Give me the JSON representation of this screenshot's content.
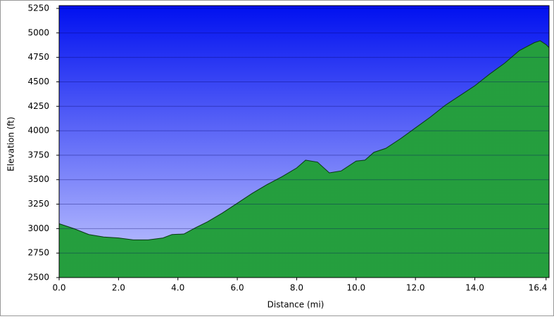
{
  "chart_data": {
    "type": "area",
    "x_label": "Distance    (mi)",
    "y_label": "Elevation (ft)",
    "x": [
      0,
      0.5,
      1,
      1.5,
      2,
      2.5,
      3,
      3.5,
      3.8,
      4.2,
      4.6,
      5,
      5.5,
      6,
      6.5,
      7,
      7.5,
      8,
      8.3,
      8.7,
      9.1,
      9.5,
      10,
      10.3,
      10.6,
      11,
      11.5,
      12,
      12.5,
      13,
      13.5,
      14,
      14.5,
      15,
      15.5,
      16,
      16.2,
      16.4,
      16.5
    ],
    "values": [
      3050,
      3000,
      2940,
      2915,
      2905,
      2885,
      2885,
      2905,
      2940,
      2945,
      3010,
      3070,
      3160,
      3260,
      3360,
      3450,
      3530,
      3620,
      3700,
      3680,
      3570,
      3590,
      3690,
      3700,
      3780,
      3820,
      3920,
      4030,
      4140,
      4260,
      4360,
      4460,
      4580,
      4690,
      4820,
      4900,
      4920,
      4880,
      4850
    ],
    "color": "#1f9a3c",
    "xlim": [
      0,
      16.5
    ],
    "ylim": [
      2500,
      5250
    ],
    "xticks": [
      {
        "value": 0,
        "label": "0.0"
      },
      {
        "value": 2,
        "label": "2.0"
      },
      {
        "value": 4,
        "label": "4.0"
      },
      {
        "value": 6,
        "label": "6.0"
      },
      {
        "value": 8,
        "label": "8.0"
      },
      {
        "value": 10,
        "label": "10.0"
      },
      {
        "value": 12,
        "label": "12.0"
      },
      {
        "value": 14,
        "label": "14.0"
      },
      {
        "value": 16.4,
        "label": "16.4"
      }
    ],
    "yticks": [
      2500,
      2750,
      3000,
      3250,
      3500,
      3750,
      4000,
      4250,
      4500,
      4750,
      5000,
      5250
    ],
    "grid": true
  }
}
